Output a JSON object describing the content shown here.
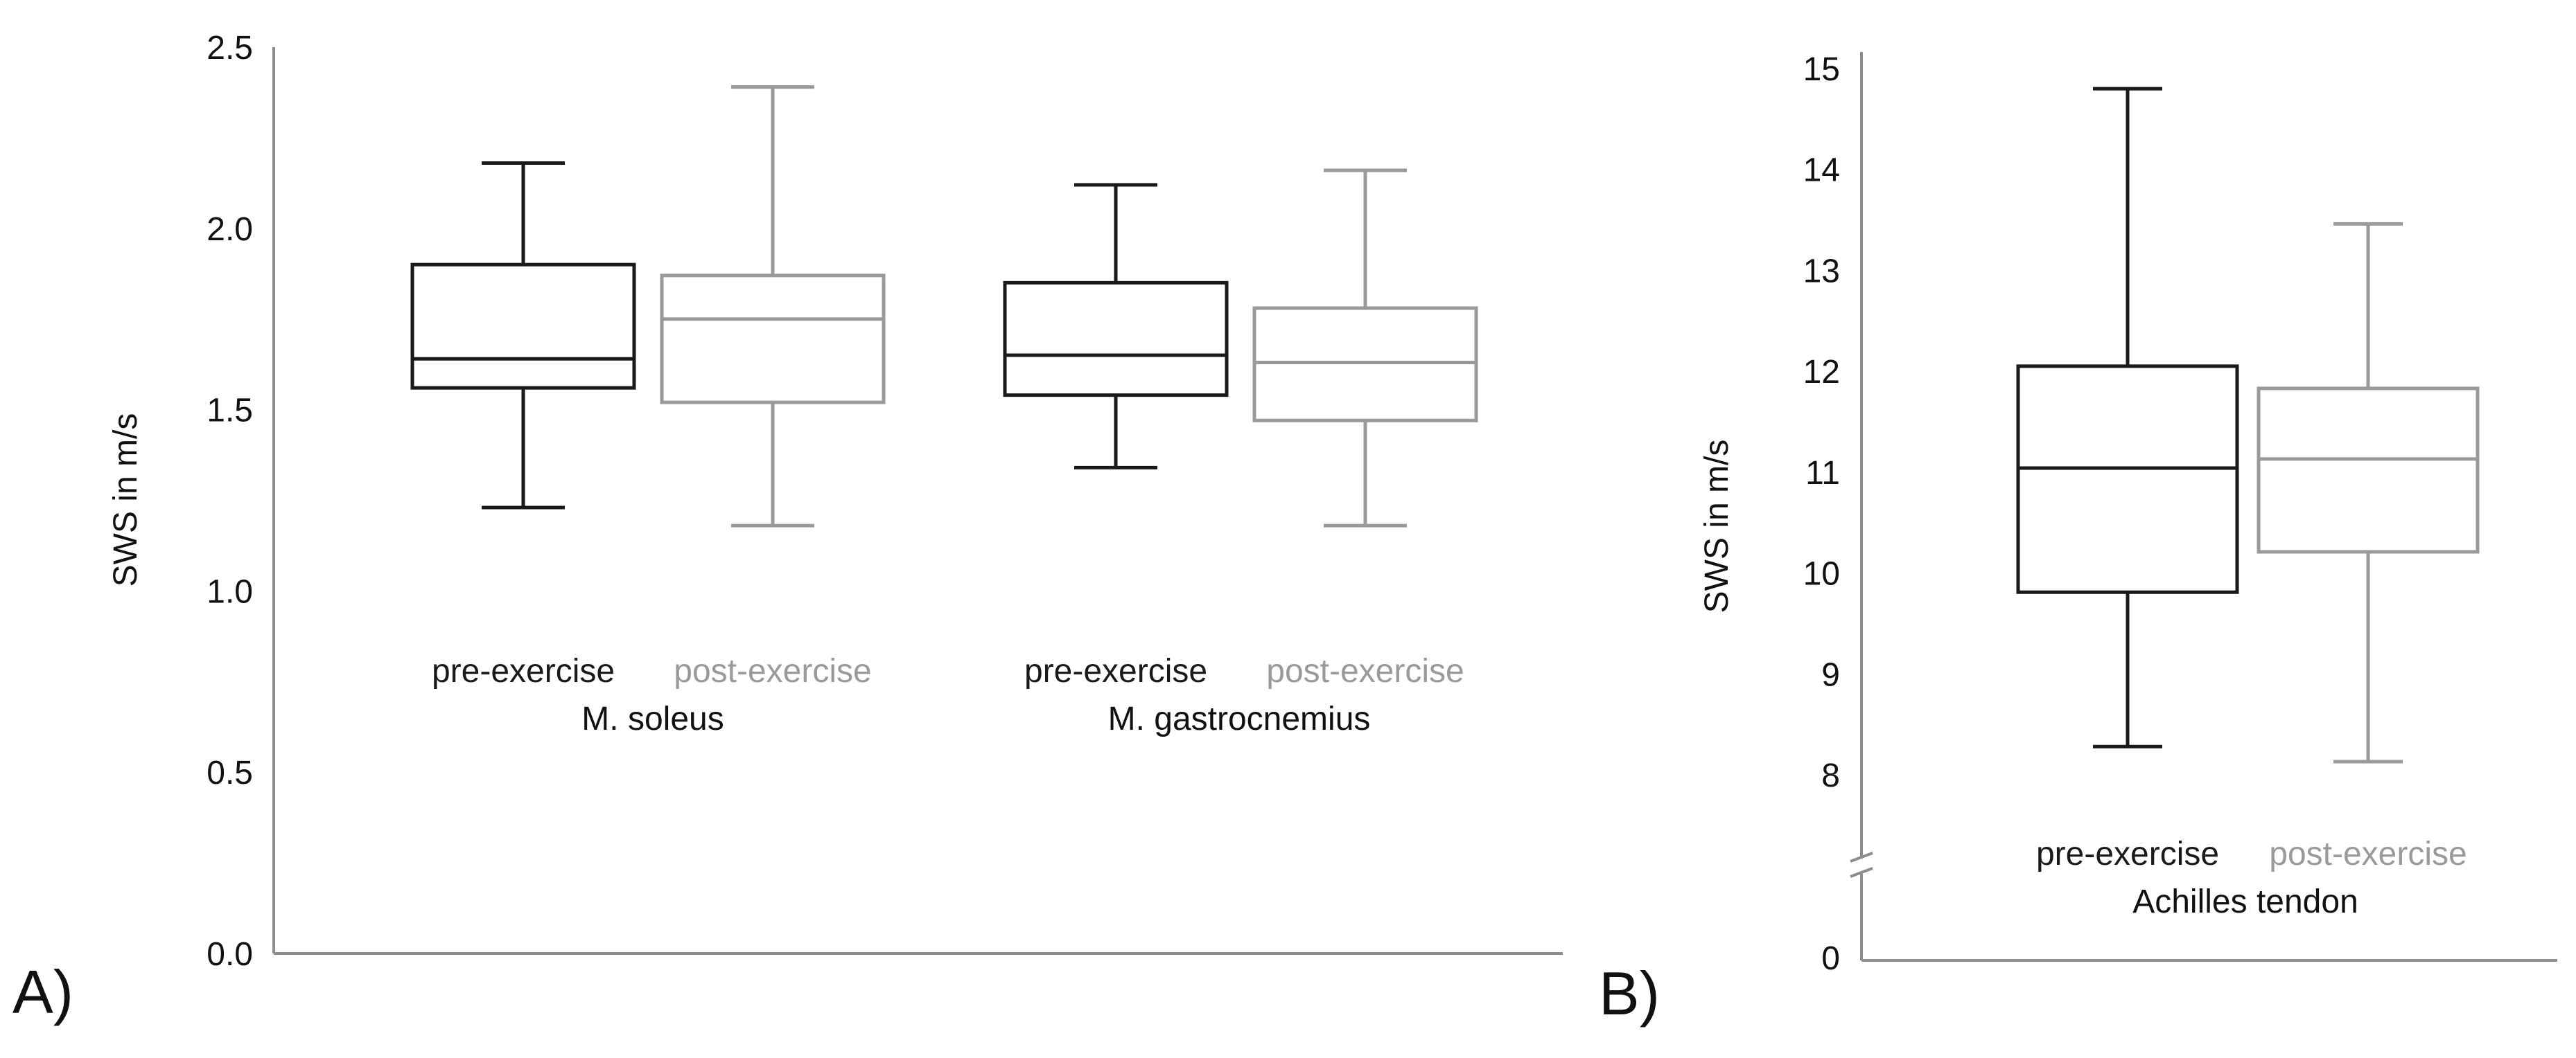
{
  "colors": {
    "pre": "#1a1a1a",
    "post": "#9a9a9a",
    "axis": "#8c8c8c"
  },
  "chart_data": [
    {
      "panel_label": "A)",
      "type": "box",
      "ylabel": "SWS in m/s",
      "ylim": [
        0,
        2.5
      ],
      "yticks": [
        "0.0",
        "0.5",
        "1.0",
        "1.5",
        "2.0",
        "2.5"
      ],
      "groups": [
        {
          "name": "M. soleus",
          "boxes": [
            {
              "label": "pre-exercise",
              "series": "pre",
              "min": 1.23,
              "q1": 1.56,
              "median": 1.64,
              "q3": 1.9,
              "max": 2.18
            },
            {
              "label": "post-exercise",
              "series": "post",
              "min": 1.18,
              "q1": 1.52,
              "median": 1.75,
              "q3": 1.87,
              "max": 2.39
            }
          ]
        },
        {
          "name": "M. gastrocnemius",
          "boxes": [
            {
              "label": "pre-exercise",
              "series": "pre",
              "min": 1.34,
              "q1": 1.54,
              "median": 1.65,
              "q3": 1.85,
              "max": 2.12
            },
            {
              "label": "post-exercise",
              "series": "post",
              "min": 1.18,
              "q1": 1.47,
              "median": 1.63,
              "q3": 1.78,
              "max": 2.16
            }
          ]
        }
      ]
    },
    {
      "panel_label": "B)",
      "type": "box",
      "ylabel": "SWS in m/s",
      "ylim": [
        7.3,
        15
      ],
      "axis_break": true,
      "yticks": [
        "0",
        "8",
        "9",
        "10",
        "11",
        "12",
        "13",
        "14",
        "15"
      ],
      "groups": [
        {
          "name": "Achilles tendon",
          "boxes": [
            {
              "label": "pre-exercise",
              "series": "pre",
              "min": 8.28,
              "q1": 9.81,
              "median": 11.04,
              "q3": 12.05,
              "max": 14.8
            },
            {
              "label": "post-exercise",
              "series": "post",
              "min": 8.13,
              "q1": 10.21,
              "median": 11.13,
              "q3": 11.83,
              "max": 13.46
            }
          ]
        }
      ]
    }
  ]
}
